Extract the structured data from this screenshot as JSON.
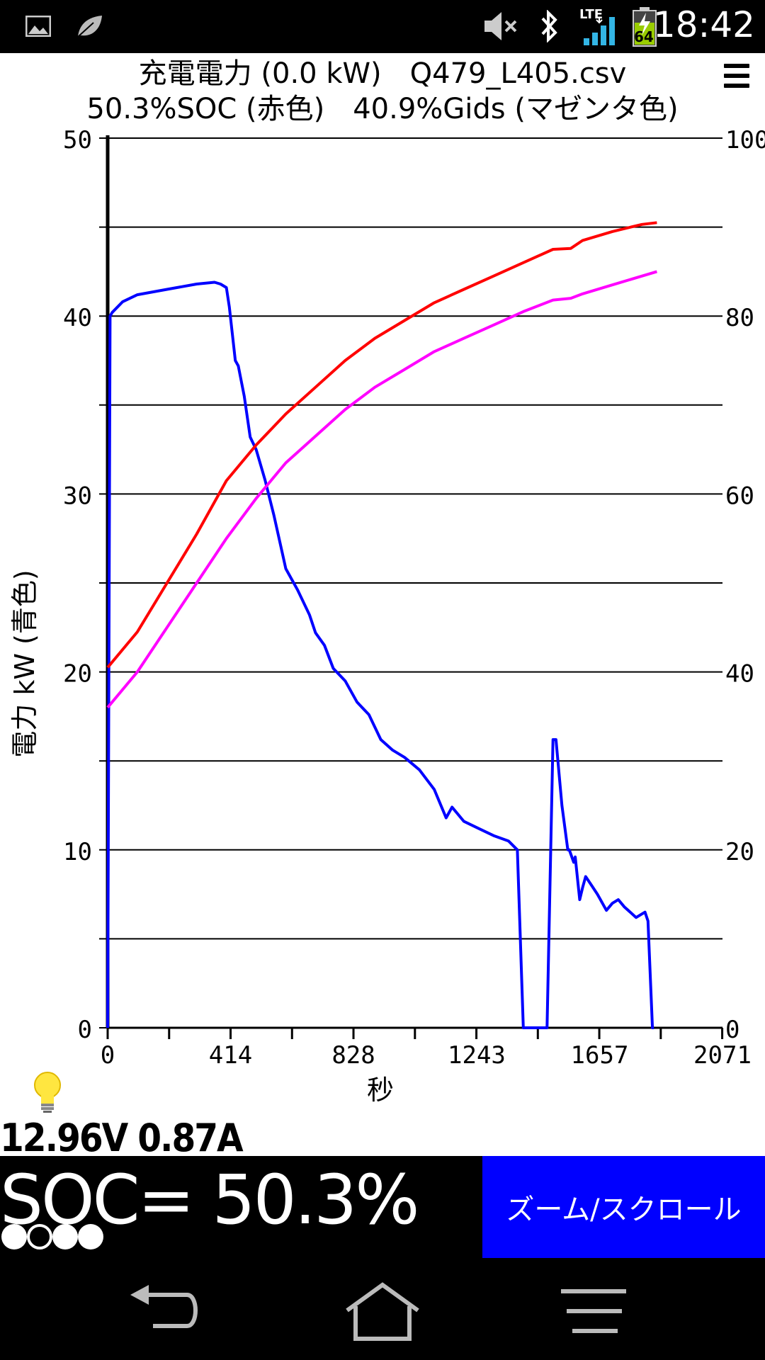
{
  "statusbar": {
    "time": "18:42",
    "network": "LTE",
    "battery_level": "64",
    "icons": [
      "image-icon",
      "leaf-icon",
      "volume-muted-icon",
      "bluetooth-icon",
      "lte-signal-icon",
      "battery-charging-icon"
    ]
  },
  "chart": {
    "title_line1": "充電電力 (0.0 kW)　Q479_L405.csv",
    "title_line2": "50.3%SOC (赤色)　40.9%Gids (マゼンタ色)",
    "ylabel_left": "電力 kW (青色)",
    "xlabel": "秒"
  },
  "chart_data": {
    "type": "line",
    "title": "充電電力 (0.0 kW)　Q479_L405.csv",
    "subtitle": "50.3%SOC (赤色)　40.9%Gids (マゼンタ色)",
    "xlabel": "秒",
    "ylabel": "電力 kW (青色)",
    "xlim": [
      0,
      2071
    ],
    "ylim_left": [
      0,
      50
    ],
    "ylim_right": [
      0,
      100
    ],
    "x_ticks": [
      0,
      414,
      828,
      1243,
      1657,
      2071
    ],
    "y_ticks_left": [
      0,
      10,
      20,
      30,
      40,
      50
    ],
    "y_ticks_right": [
      0,
      20,
      40,
      60,
      80,
      100
    ],
    "grid": "horizontal",
    "series": [
      {
        "color": "#0000ff",
        "axis": "left",
        "x": [
          0,
          8,
          15,
          50,
          100,
          200,
          300,
          360,
          380,
          400,
          410,
          420,
          430,
          440,
          460,
          480,
          500,
          530,
          560,
          580,
          600,
          640,
          680,
          700,
          730,
          760,
          800,
          840,
          880,
          920,
          960,
          1000,
          1050,
          1100,
          1130,
          1140,
          1160,
          1200,
          1250,
          1300,
          1350,
          1380,
          1400,
          1440,
          1480,
          1500,
          1510,
          1530,
          1550,
          1555,
          1570,
          1575,
          1590,
          1600,
          1610,
          1630,
          1650,
          1660,
          1680,
          1700,
          1720,
          1740,
          1760,
          1780,
          1800,
          1810,
          1820,
          1835,
          1840
        ],
        "y": [
          0,
          40,
          40.2,
          40.8,
          41.2,
          41.5,
          41.8,
          41.9,
          41.8,
          41.6,
          40.5,
          39,
          37.5,
          37.2,
          35.5,
          33.2,
          32.5,
          30.8,
          28.8,
          27.3,
          25.8,
          24.6,
          23.2,
          22.2,
          21.5,
          20.2,
          19.5,
          18.3,
          17.6,
          16.2,
          15.6,
          15.2,
          14.5,
          13.4,
          12.2,
          11.8,
          12.4,
          11.6,
          11.2,
          10.8,
          10.5,
          10,
          0,
          0,
          0,
          16.2,
          16.2,
          12.5,
          10,
          10,
          9.3,
          9.6,
          7.2,
          7.9,
          8.5,
          8,
          7.5,
          7.2,
          6.6,
          7,
          7.2,
          6.8,
          6.5,
          6.2,
          6.4,
          6.5,
          6,
          0,
          0
        ]
      },
      {
        "color": "#ff0000",
        "axis": "right",
        "x": [
          0,
          100,
          200,
          300,
          400,
          500,
          600,
          700,
          800,
          900,
          1000,
          1100,
          1200,
          1300,
          1400,
          1500,
          1560,
          1600,
          1700,
          1800,
          1850
        ],
        "y": [
          40.5,
          44.5,
          50,
          55.5,
          61.5,
          65.5,
          69,
          72,
          75,
          77.5,
          79.5,
          81.5,
          83,
          84.5,
          86,
          87.5,
          87.6,
          88.5,
          89.5,
          90.3,
          90.5
        ]
      },
      {
        "color": "#ff00ff",
        "axis": "right",
        "x": [
          0,
          100,
          200,
          300,
          400,
          500,
          600,
          700,
          800,
          900,
          1000,
          1100,
          1200,
          1300,
          1400,
          1500,
          1560,
          1600,
          1700,
          1800,
          1850
        ],
        "y": [
          36,
          40,
          45,
          50,
          55,
          59.5,
          63.5,
          66.5,
          69.5,
          72,
          74,
          76,
          77.5,
          79,
          80.5,
          81.8,
          82,
          82.5,
          83.5,
          84.5,
          85
        ]
      }
    ]
  },
  "readout": {
    "voltage": "12.96V",
    "current": "0.87A"
  },
  "soc": {
    "text": "SOC= 50.3%"
  },
  "dots": [
    "filled",
    "empty",
    "filled",
    "filled"
  ],
  "zoom_button": {
    "label": "ズーム/スクロール",
    "color": "#0000ff"
  },
  "nav": {
    "icons": [
      "back-icon",
      "home-icon",
      "menu-icon"
    ]
  }
}
